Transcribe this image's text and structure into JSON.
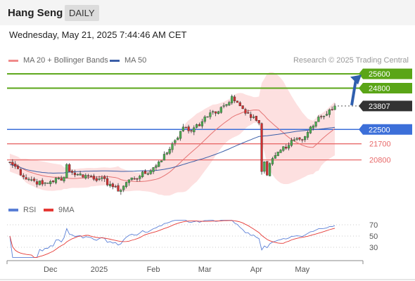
{
  "header": {
    "instrument": "Hang Seng",
    "timeframe": "DAILY",
    "datetime": "Wednesday, May 21, 2025 7:44:46 AM CET"
  },
  "legend": {
    "ma20_label": "MA 20 + Bollinger Bands",
    "ma50_label": "MA 50",
    "copyright": "Research © 2025 Trading Central"
  },
  "colors": {
    "up_candle": "#4caf50",
    "down_candle": "#d32f2f",
    "ma20": "#e57373",
    "ma50": "#3b5ea8",
    "bollinger_fill": "#fde0e0",
    "resistance": "#5aa517",
    "pivot": "#3c6fd9",
    "support": "#e86a6a",
    "price_tag": "#333333",
    "arrow": "#2f5fae",
    "rsi": "#5a7fd6",
    "rsi_ma": "#e53935"
  },
  "chart_data": [
    {
      "type": "candlestick",
      "title": "Hang Seng",
      "ylim": [
        18750,
        25800
      ],
      "levels": [
        {
          "label": "25600",
          "value": 25600,
          "kind": "resistance"
        },
        {
          "label": "24800",
          "value": 24800,
          "kind": "resistance"
        },
        {
          "label": "23807",
          "value": 23807,
          "kind": "last"
        },
        {
          "label": "22500",
          "value": 22500,
          "kind": "pivot"
        },
        {
          "label": "21700",
          "value": 21700,
          "kind": "support"
        },
        {
          "label": "20800",
          "value": 20800,
          "kind": "support"
        }
      ],
      "x_ticks": [
        "Dec",
        "2025",
        "Feb",
        "Mar",
        "Apr",
        "May"
      ],
      "tick_positions": [
        15,
        33,
        53,
        72,
        91,
        108
      ],
      "n_bars": 121,
      "anchors": [
        [
          0,
          20650
        ],
        [
          3,
          20300
        ],
        [
          5,
          19850
        ],
        [
          8,
          19700
        ],
        [
          12,
          19450
        ],
        [
          15,
          19600
        ],
        [
          20,
          19850
        ],
        [
          21,
          20550
        ],
        [
          22,
          20150
        ],
        [
          25,
          20000
        ],
        [
          29,
          19900
        ],
        [
          33,
          19750
        ],
        [
          37,
          19450
        ],
        [
          40,
          19050
        ],
        [
          44,
          19700
        ],
        [
          48,
          19900
        ],
        [
          52,
          20200
        ],
        [
          55,
          20700
        ],
        [
          58,
          21200
        ],
        [
          60,
          21700
        ],
        [
          63,
          22400
        ],
        [
          65,
          22600
        ],
        [
          67,
          22400
        ],
        [
          68,
          22600
        ],
        [
          70,
          22700
        ],
        [
          72,
          23200
        ],
        [
          75,
          23500
        ],
        [
          76,
          23400
        ],
        [
          80,
          23900
        ],
        [
          82,
          24350
        ],
        [
          84,
          24000
        ],
        [
          86,
          23650
        ],
        [
          88,
          23400
        ],
        [
          90,
          23200
        ],
        [
          92,
          22850
        ],
        [
          93,
          20150
        ],
        [
          94,
          20700
        ],
        [
          95,
          19950
        ],
        [
          96,
          20600
        ],
        [
          98,
          21050
        ],
        [
          100,
          21350
        ],
        [
          102,
          21450
        ],
        [
          104,
          21900
        ],
        [
          106,
          22000
        ],
        [
          108,
          21900
        ],
        [
          110,
          22350
        ],
        [
          112,
          22700
        ],
        [
          114,
          23200
        ],
        [
          116,
          23250
        ],
        [
          118,
          23600
        ],
        [
          120,
          23807
        ]
      ],
      "seed": 7,
      "series": [
        {
          "name": "MA 20 + Bollinger Bands"
        },
        {
          "name": "MA 50"
        }
      ]
    },
    {
      "type": "line",
      "title": "RSI",
      "ylim": [
        10,
        80
      ],
      "y_ticks": [
        70,
        50,
        30
      ],
      "series": [
        {
          "name": "RSI"
        },
        {
          "name": "9MA"
        }
      ]
    }
  ]
}
